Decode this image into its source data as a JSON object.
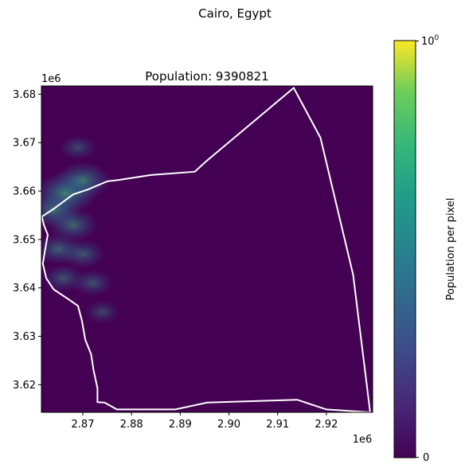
{
  "figure": {
    "suptitle": "Cairo, Egypt"
  },
  "chart_data": {
    "type": "heatmap",
    "title": "Population: 9390821",
    "xlabel": "",
    "ylabel": "",
    "x_offset_label": "1e6",
    "y_offset_label": "1e6",
    "xlim": [
      2.8615,
      2.9295
    ],
    "ylim": [
      3.6143,
      3.6817
    ],
    "x_ticks": [
      2.87,
      2.88,
      2.89,
      2.9,
      2.91,
      2.92
    ],
    "x_tick_labels": [
      "2.87",
      "2.88",
      "2.89",
      "2.90",
      "2.91",
      "2.92"
    ],
    "y_ticks": [
      3.62,
      3.63,
      3.64,
      3.65,
      3.66,
      3.67,
      3.68
    ],
    "y_tick_labels": [
      "3.62",
      "3.63",
      "3.64",
      "3.65",
      "3.66",
      "3.67",
      "3.68"
    ],
    "colormap": "viridis",
    "boundary_color": "#ffffff",
    "boundary": [
      [
        2.8616,
        3.6547
      ],
      [
        2.864,
        3.6563
      ],
      [
        2.868,
        3.6593
      ],
      [
        2.871,
        3.6603
      ],
      [
        2.875,
        3.662
      ],
      [
        2.8775,
        3.6623
      ],
      [
        2.884,
        3.6633
      ],
      [
        2.893,
        3.664
      ],
      [
        2.8955,
        3.6663
      ],
      [
        2.9133,
        3.6813
      ],
      [
        2.9188,
        3.671
      ],
      [
        2.9255,
        3.6427
      ],
      [
        2.929,
        3.6143
      ],
      [
        2.92,
        3.6149
      ],
      [
        2.914,
        3.6169
      ],
      [
        2.8955,
        3.6163
      ],
      [
        2.889,
        3.6149
      ],
      [
        2.877,
        3.6149
      ],
      [
        2.8745,
        3.6163
      ],
      [
        2.873,
        3.6164
      ],
      [
        2.873,
        3.6193
      ],
      [
        2.8722,
        3.623
      ],
      [
        2.8717,
        3.6263
      ],
      [
        2.8705,
        3.6293
      ],
      [
        2.8698,
        3.6333
      ],
      [
        2.869,
        3.6363
      ],
      [
        2.867,
        3.6377
      ],
      [
        2.864,
        3.6397
      ],
      [
        2.8625,
        3.642
      ],
      [
        2.8618,
        3.645
      ],
      [
        2.8622,
        3.6475
      ],
      [
        2.8628,
        3.651
      ],
      [
        2.862,
        3.653
      ],
      [
        2.8616,
        3.6547
      ]
    ],
    "hotspots": [
      {
        "x": 2.8665,
        "y": 3.6595,
        "weight": 0.55
      },
      {
        "x": 2.87,
        "y": 3.6622,
        "weight": 0.45
      },
      {
        "x": 2.864,
        "y": 3.656,
        "weight": 0.4
      },
      {
        "x": 2.868,
        "y": 3.653,
        "weight": 0.35
      },
      {
        "x": 2.865,
        "y": 3.648,
        "weight": 0.3
      },
      {
        "x": 2.87,
        "y": 3.647,
        "weight": 0.25
      },
      {
        "x": 2.866,
        "y": 3.642,
        "weight": 0.22
      },
      {
        "x": 2.872,
        "y": 3.641,
        "weight": 0.2
      },
      {
        "x": 2.869,
        "y": 3.669,
        "weight": 0.15
      },
      {
        "x": 2.874,
        "y": 3.635,
        "weight": 0.12
      }
    ],
    "colorbar": {
      "label": "Population per pixel",
      "tick_min_label": "0",
      "tick_max_base": "10",
      "tick_max_exp": "0"
    }
  }
}
